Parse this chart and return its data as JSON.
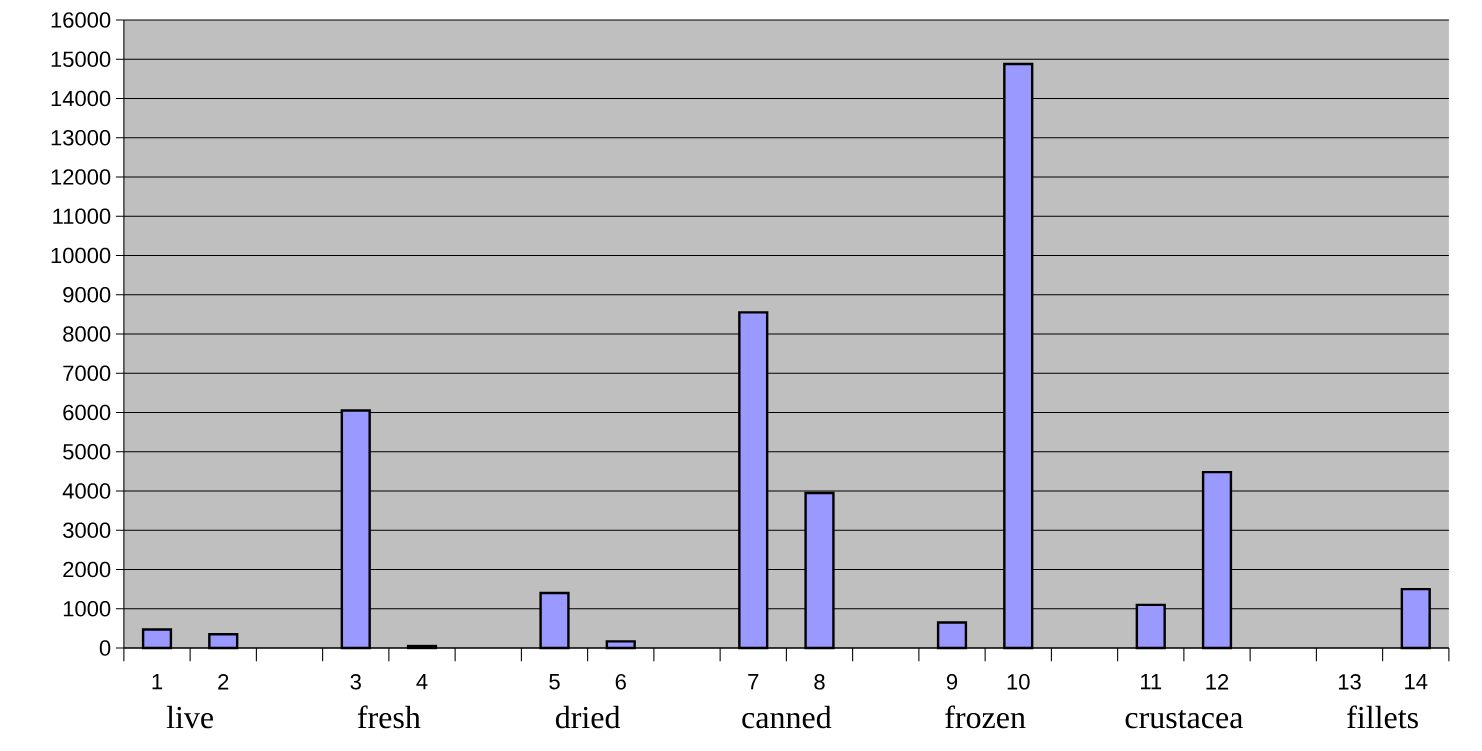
{
  "chart_data": {
    "type": "bar",
    "categories": [
      "1",
      "2",
      null,
      "3",
      "4",
      null,
      "5",
      "6",
      null,
      "7",
      "8",
      null,
      "9",
      "10",
      null,
      "11",
      "12",
      null,
      "13",
      "14"
    ],
    "values": [
      470,
      350,
      null,
      6050,
      50,
      null,
      1400,
      170,
      null,
      8550,
      3950,
      null,
      650,
      14880,
      null,
      1100,
      4480,
      null,
      null,
      1500
    ],
    "color": "#9999ff",
    "ylim": [
      0,
      16000
    ],
    "yticks": [
      0,
      1000,
      2000,
      3000,
      4000,
      5000,
      6000,
      7000,
      8000,
      9000,
      10000,
      11000,
      12000,
      13000,
      14000,
      15000,
      16000
    ],
    "grid": "y",
    "annotations": [
      "live",
      "fresh",
      "dried",
      "canned",
      "frozen",
      "crustacea",
      "fillets"
    ]
  }
}
